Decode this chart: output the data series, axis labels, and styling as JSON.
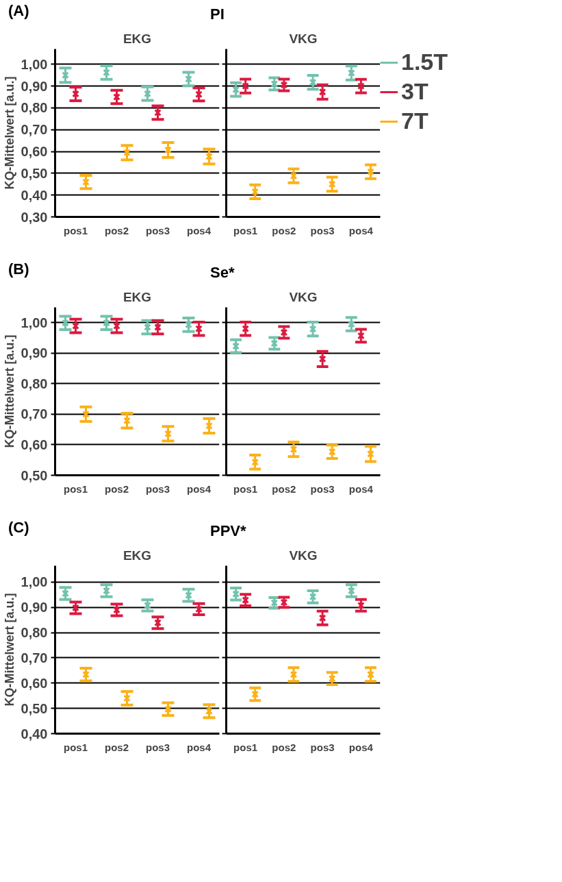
{
  "chart_data": [
    {
      "type": "scatter",
      "title": "EKG",
      "ylabel": "KQ-Mittelwert [a.u.]",
      "annotations": [
        "(A)",
        "PI"
      ],
      "categories": [
        "pos1",
        "pos2",
        "pos3",
        "pos4"
      ],
      "ylim": [
        0.3,
        1.07
      ],
      "yticks": [
        {
          "value": 0.3,
          "label": "0,30"
        },
        {
          "value": 0.4,
          "label": "0,40"
        },
        {
          "value": 0.5,
          "label": "0,50"
        },
        {
          "value": 0.6,
          "label": "0,60"
        },
        {
          "value": 0.7,
          "label": "0,70"
        },
        {
          "value": 0.8,
          "label": "0,80"
        },
        {
          "value": 0.9,
          "label": "0,90"
        },
        {
          "value": 1.0,
          "label": "1,00"
        }
      ],
      "grid": "y",
      "marker": "cross",
      "series": [
        {
          "color": "#72c2ad",
          "values": [
            0.95,
            0.962,
            0.865,
            0.932
          ],
          "errors": [
            0.033,
            0.031,
            0.031,
            0.031
          ]
        },
        {
          "color": "#dc1a40",
          "values": [
            0.864,
            0.85,
            0.778,
            0.862
          ],
          "errors": [
            0.031,
            0.031,
            0.031,
            0.03
          ]
        },
        {
          "color": "#fbb117",
          "values": [
            0.46,
            0.595,
            0.607,
            0.577
          ],
          "errors": [
            0.03,
            0.033,
            0.034,
            0.034
          ]
        }
      ]
    },
    {
      "type": "scatter",
      "title": "VKG",
      "categories": [
        "pos1",
        "pos2",
        "pos3",
        "pos4"
      ],
      "ylim": [
        0.3,
        1.07
      ],
      "yticks": [
        0.3,
        0.4,
        0.5,
        0.6,
        0.7,
        0.8,
        0.9,
        1.0
      ],
      "tick_labels": "x",
      "grid": "y",
      "marker": "cross",
      "legend": "right",
      "series": [
        {
          "name": "1.5T",
          "color": "#72c2ad",
          "values": [
            0.884,
            0.91,
            0.917,
            0.96
          ],
          "errors": [
            0.031,
            0.028,
            0.032,
            0.032
          ]
        },
        {
          "name": "3T",
          "color": "#dc1a40",
          "values": [
            0.9,
            0.905,
            0.873,
            0.9
          ],
          "errors": [
            0.032,
            0.027,
            0.033,
            0.031
          ]
        },
        {
          "name": "7T",
          "color": "#fbb117",
          "values": [
            0.415,
            0.488,
            0.45,
            0.507
          ],
          "errors": [
            0.032,
            0.032,
            0.032,
            0.032
          ]
        }
      ]
    },
    {
      "type": "scatter",
      "title": "EKG",
      "ylabel": "KQ-Mittelwert [a.u.]",
      "annotations": [
        "(B)",
        "Se*"
      ],
      "categories": [
        "pos1",
        "pos2",
        "pos3",
        "pos4"
      ],
      "ylim": [
        0.5,
        1.05
      ],
      "yticks": [
        {
          "value": 0.5,
          "label": "0,50"
        },
        {
          "value": 0.6,
          "label": "0,60"
        },
        {
          "value": 0.7,
          "label": "0,70"
        },
        {
          "value": 0.8,
          "label": "0,80"
        },
        {
          "value": 0.9,
          "label": "0,90"
        },
        {
          "value": 1.0,
          "label": "1,00"
        }
      ],
      "grid": "y",
      "marker": "cross",
      "series": [
        {
          "color": "#72c2ad",
          "values": [
            0.999,
            0.999,
            0.985,
            0.993
          ],
          "errors": [
            0.022,
            0.022,
            0.022,
            0.022
          ]
        },
        {
          "color": "#dc1a40",
          "values": [
            0.989,
            0.989,
            0.985,
            0.98
          ],
          "errors": [
            0.022,
            0.022,
            0.022,
            0.022
          ]
        },
        {
          "color": "#fbb117",
          "values": [
            0.7,
            0.679,
            0.636,
            0.662
          ],
          "errors": [
            0.024,
            0.024,
            0.024,
            0.024
          ]
        }
      ]
    },
    {
      "type": "scatter",
      "title": "VKG",
      "categories": [
        "pos1",
        "pos2",
        "pos3",
        "pos4"
      ],
      "ylim": [
        0.5,
        1.05
      ],
      "yticks": [
        0.5,
        0.6,
        0.7,
        0.8,
        0.9,
        1.0
      ],
      "tick_labels": "x",
      "grid": "y",
      "marker": "cross",
      "series": [
        {
          "color": "#72c2ad",
          "values": [
            0.923,
            0.932,
            0.979,
            0.995
          ],
          "errors": [
            0.021,
            0.019,
            0.023,
            0.022
          ]
        },
        {
          "color": "#dc1a40",
          "values": [
            0.98,
            0.968,
            0.881,
            0.957
          ],
          "errors": [
            0.022,
            0.019,
            0.025,
            0.021
          ]
        },
        {
          "color": "#fbb117",
          "values": [
            0.543,
            0.585,
            0.577,
            0.57
          ],
          "errors": [
            0.023,
            0.024,
            0.022,
            0.025
          ]
        }
      ]
    },
    {
      "type": "scatter",
      "title": "EKG",
      "ylabel": "KQ-Mittelwert [a.u.]",
      "annotations": [
        "(C)",
        "PPV*"
      ],
      "categories": [
        "pos1",
        "pos2",
        "pos3",
        "pos4"
      ],
      "ylim": [
        0.4,
        1.065
      ],
      "yticks": [
        {
          "value": 0.4,
          "label": "0,40"
        },
        {
          "value": 0.5,
          "label": "0,50"
        },
        {
          "value": 0.6,
          "label": "0,60"
        },
        {
          "value": 0.7,
          "label": "0,70"
        },
        {
          "value": 0.8,
          "label": "0,80"
        },
        {
          "value": 0.9,
          "label": "0,90"
        },
        {
          "value": 1.0,
          "label": "1,00"
        }
      ],
      "grid": "y",
      "marker": "cross",
      "series": [
        {
          "color": "#72c2ad",
          "values": [
            0.955,
            0.966,
            0.908,
            0.948
          ],
          "errors": [
            0.024,
            0.024,
            0.022,
            0.024
          ]
        },
        {
          "color": "#dc1a40",
          "values": [
            0.898,
            0.89,
            0.839,
            0.893
          ],
          "errors": [
            0.023,
            0.023,
            0.023,
            0.022
          ]
        },
        {
          "color": "#fbb117",
          "values": [
            0.634,
            0.54,
            0.497,
            0.489
          ],
          "errors": [
            0.025,
            0.027,
            0.025,
            0.026
          ]
        }
      ]
    },
    {
      "type": "scatter",
      "title": "VKG",
      "categories": [
        "pos1",
        "pos2",
        "pos3",
        "pos4"
      ],
      "ylim": [
        0.4,
        1.065
      ],
      "yticks": [
        0.4,
        0.5,
        0.6,
        0.7,
        0.8,
        0.9,
        1.0
      ],
      "tick_labels": "x",
      "grid": "y",
      "marker": "cross",
      "series": [
        {
          "color": "#72c2ad",
          "values": [
            0.953,
            0.918,
            0.942,
            0.966
          ],
          "errors": [
            0.024,
            0.021,
            0.024,
            0.024
          ]
        },
        {
          "color": "#dc1a40",
          "values": [
            0.929,
            0.92,
            0.858,
            0.908
          ],
          "errors": [
            0.023,
            0.02,
            0.027,
            0.023
          ]
        },
        {
          "color": "#fbb117",
          "values": [
            0.556,
            0.634,
            0.618,
            0.634
          ],
          "errors": [
            0.025,
            0.027,
            0.024,
            0.027
          ]
        }
      ]
    }
  ]
}
